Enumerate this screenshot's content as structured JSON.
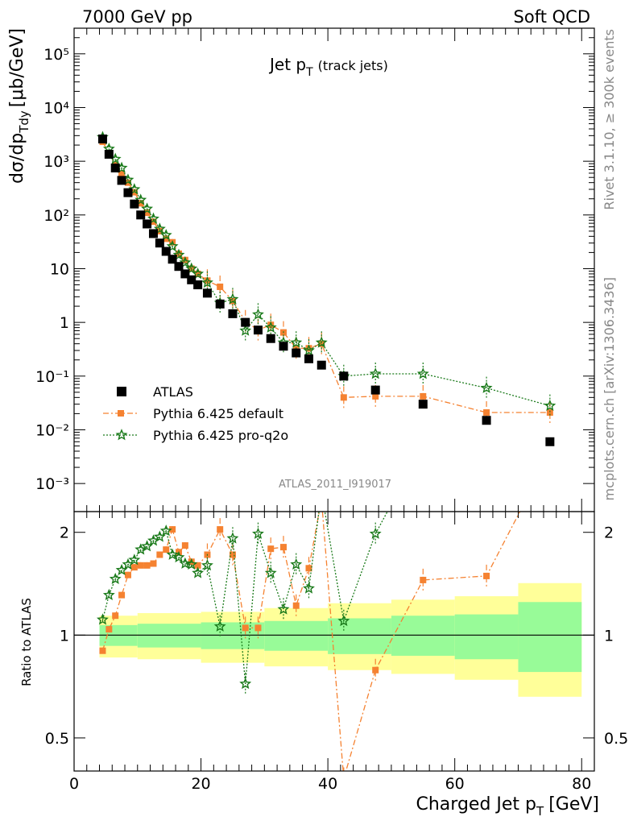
{
  "header": {
    "left": "7000 GeV pp",
    "right": "Soft QCD"
  },
  "side": {
    "top": "Rivet 3.1.10, ≥ 300k events",
    "bottom": "mcplots.cern.ch [arXiv:1306.3436]"
  },
  "main": {
    "title_main": "Jet p",
    "title_sub": "T",
    "title_note": "(track jets)",
    "ylabel": "dσ/dp",
    "ylabel_sub": "Tdy",
    "ylabel_unit": "[μb/GeV]",
    "watermark": "ATLAS_2011_I919017"
  },
  "ratio": {
    "ylabel": "Ratio to ATLAS"
  },
  "xaxis": {
    "label": "Charged Jet p",
    "label_sub": "T",
    "label_unit": "[GeV]"
  },
  "legend": [
    {
      "key": "atlas",
      "label": "ATLAS"
    },
    {
      "key": "default",
      "label": "Pythia 6.425 default"
    },
    {
      "key": "proq2o",
      "label": "Pythia 6.425 pro-q2o"
    }
  ],
  "colors": {
    "data": "#000000",
    "default": "#f58231",
    "proq2o": "#1a7a1a",
    "band_inner": "#98fb98",
    "band_outer": "#ffff99"
  },
  "chart_data": {
    "type": "scatter",
    "main_plot": {
      "xlim": [
        0,
        82
      ],
      "ylim": [
        0.0003,
        300000
      ],
      "log_y": true,
      "y_ticks": [
        "10⁻³",
        "10⁻²",
        "10⁻¹",
        "1",
        "10",
        "10²",
        "10³",
        "10⁴",
        "10⁵"
      ],
      "y_tick_values": [
        0.001,
        0.01,
        0.1,
        1,
        10,
        100,
        1000,
        10000,
        100000
      ]
    },
    "ratio_plot": {
      "ylim": [
        0.4,
        2.3
      ],
      "log_y": true,
      "y_ticks": [
        "0.5",
        "1",
        "2"
      ],
      "y_tick_values": [
        0.5,
        1,
        2
      ]
    },
    "x_ticks": [
      0,
      20,
      40,
      60,
      80
    ],
    "atlas": {
      "x": [
        4.5,
        5.5,
        6.5,
        7.5,
        8.5,
        9.5,
        10.5,
        11.5,
        12.5,
        13.5,
        14.5,
        15.5,
        16.5,
        17.5,
        18.5,
        19.5,
        21,
        23,
        25,
        27,
        29,
        31,
        33,
        35,
        37,
        39,
        42.5,
        47.5,
        55,
        65,
        75
      ],
      "y": [
        2600,
        1350,
        750,
        440,
        260,
        160,
        100,
        68,
        45,
        30,
        21,
        15,
        11,
        8,
        6.2,
        5,
        3.5,
        2.2,
        1.45,
        1.0,
        0.72,
        0.5,
        0.36,
        0.27,
        0.21,
        0.16,
        0.1,
        0.055,
        0.03,
        0.015,
        0.006
      ]
    },
    "series": [
      {
        "key": "default",
        "name": "Pythia 6.425 default",
        "x": [
          4.5,
          5.5,
          6.5,
          7.5,
          8.5,
          9.5,
          10.5,
          11.5,
          12.5,
          13.5,
          14.5,
          15.5,
          16.5,
          17.5,
          18.5,
          19.5,
          21,
          23,
          25,
          27,
          29,
          31,
          33,
          35,
          37,
          39,
          42.5,
          47.5,
          55,
          65,
          75
        ],
        "y": [
          2300,
          1400,
          850,
          580,
          400,
          265,
          165,
          110,
          75,
          50,
          36,
          31,
          19,
          14.5,
          10,
          8,
          6,
          4.6,
          2.5,
          1.05,
          0.72,
          0.9,
          0.65,
          0.33,
          0.33,
          0.4,
          0.04,
          0.042,
          0.042,
          0.021,
          0.021
        ],
        "ratio": [
          0.9,
          1.04,
          1.14,
          1.31,
          1.5,
          1.58,
          1.6,
          1.6,
          1.62,
          1.72,
          1.78,
          2.04,
          1.75,
          1.83,
          1.64,
          1.6,
          1.72,
          2.04,
          1.72,
          1.05,
          1.05,
          1.79,
          1.81,
          1.22,
          1.57,
          2.5,
          0.38,
          0.79,
          1.45,
          1.49,
          3.4
        ]
      },
      {
        "key": "proq2o",
        "name": "Pythia 6.425 pro-q2o",
        "x": [
          4.5,
          5.5,
          6.5,
          7.5,
          8.5,
          9.5,
          10.5,
          11.5,
          12.5,
          13.5,
          14.5,
          15.5,
          16.5,
          17.5,
          18.5,
          19.5,
          21,
          23,
          25,
          27,
          29,
          31,
          33,
          35,
          37,
          39,
          42.5,
          47.5,
          55,
          65,
          75
        ],
        "y": [
          2800,
          1700,
          1100,
          750,
          450,
          300,
          190,
          130,
          85,
          55,
          42,
          26,
          18,
          13,
          10,
          8,
          5.5,
          2.3,
          2.7,
          0.7,
          1.4,
          0.8,
          0.42,
          0.42,
          0.3,
          0.42,
          0.1,
          0.11,
          0.11,
          0.06,
          0.028
        ],
        "ratio": [
          1.11,
          1.31,
          1.46,
          1.55,
          1.61,
          1.66,
          1.78,
          1.82,
          1.89,
          1.94,
          2.02,
          1.72,
          1.69,
          1.62,
          1.61,
          1.52,
          1.6,
          1.06,
          1.92,
          0.72,
          1.98,
          1.52,
          1.19,
          1.61,
          1.37,
          2.62,
          1.1,
          1.98,
          3.6,
          4.0,
          4.6
        ]
      }
    ],
    "ratio_bands": {
      "edges": [
        4,
        10,
        20,
        30,
        40,
        50,
        60,
        70,
        80
      ],
      "inner": [
        [
          0.93,
          1.07
        ],
        [
          0.92,
          1.08
        ],
        [
          0.91,
          1.09
        ],
        [
          0.9,
          1.1
        ],
        [
          0.88,
          1.12
        ],
        [
          0.87,
          1.14
        ],
        [
          0.85,
          1.15
        ],
        [
          0.78,
          1.25
        ]
      ],
      "outer": [
        [
          0.86,
          1.14
        ],
        [
          0.85,
          1.16
        ],
        [
          0.83,
          1.17
        ],
        [
          0.81,
          1.2
        ],
        [
          0.79,
          1.24
        ],
        [
          0.77,
          1.27
        ],
        [
          0.74,
          1.3
        ],
        [
          0.66,
          1.42
        ]
      ]
    }
  }
}
